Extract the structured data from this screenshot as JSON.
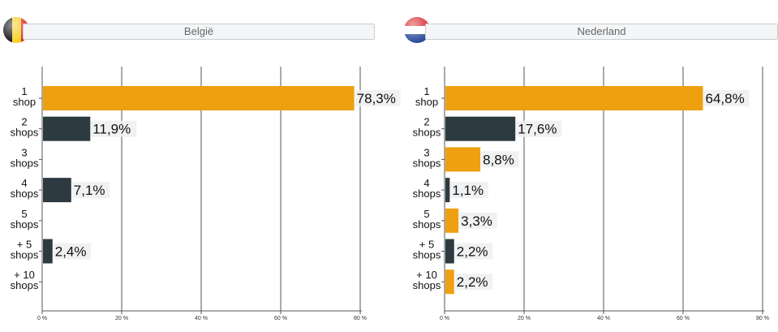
{
  "colors": {
    "orange": "#eea010",
    "dark": "#2e3a42",
    "grid": "#555555",
    "label_bg": "#eef0f1"
  },
  "chart_data": [
    {
      "type": "bar",
      "orientation": "horizontal",
      "title": "België",
      "flag_icon": "belgium-flag-icon",
      "categories": [
        "1\nshop",
        "2\nshops",
        "3\nshops",
        "4\nshops",
        "5\nshops",
        "+ 5\nshops",
        "+ 10\nshops"
      ],
      "values": [
        78.3,
        11.9,
        null,
        7.1,
        null,
        2.4,
        null
      ],
      "value_labels": [
        "78,3%",
        "11,9%",
        "",
        "7,1%",
        "",
        "2,4%",
        ""
      ],
      "bar_colors": [
        "orange",
        "dark",
        "orange",
        "dark",
        "orange",
        "dark",
        "orange"
      ],
      "xlim": [
        0,
        80
      ],
      "x_ticks": [
        0,
        20,
        40,
        60,
        80
      ],
      "x_tick_labels": [
        "0 %",
        "20 %",
        "40 %",
        "60 %",
        "80 %"
      ],
      "grid": true
    },
    {
      "type": "bar",
      "orientation": "horizontal",
      "title": "Nederland",
      "flag_icon": "netherlands-flag-icon",
      "categories": [
        "1\nshop",
        "2\nshops",
        "3\nshops",
        "4\nshops",
        "5\nshops",
        "+ 5\nshops",
        "+ 10\nshops"
      ],
      "values": [
        64.8,
        17.6,
        8.8,
        1.1,
        3.3,
        2.2,
        2.2
      ],
      "value_labels": [
        "64,8%",
        "17,6%",
        "8,8%",
        "1,1%",
        "3,3%",
        "2,2%",
        "2,2%"
      ],
      "bar_colors": [
        "orange",
        "dark",
        "orange",
        "dark",
        "orange",
        "dark",
        "orange"
      ],
      "xlim": [
        0,
        80
      ],
      "x_ticks": [
        0,
        20,
        40,
        60,
        80
      ],
      "x_tick_labels": [
        "0 %",
        "20 %",
        "40 %",
        "60 %",
        "80 %"
      ],
      "grid": true
    }
  ]
}
